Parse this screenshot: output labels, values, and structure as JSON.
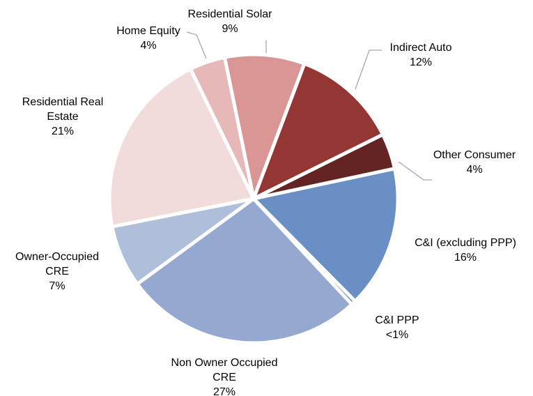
{
  "chart_data": {
    "type": "pie",
    "categories": [
      "Residential Solar",
      "Indirect Auto",
      "Other Consumer",
      "C&I (excluding PPP)",
      "C&I PPP",
      "Non Owner Occupied CRE",
      "Owner-Occupied CRE",
      "Residential Real Estate",
      "Home Equity"
    ],
    "values": [
      9,
      12,
      4,
      16,
      0.5,
      27,
      7,
      21,
      4
    ],
    "value_labels": [
      "9%",
      "12%",
      "4%",
      "16%",
      "<1%",
      "27%",
      "7%",
      "21%",
      "4%"
    ],
    "colors": [
      "#d99694",
      "#943634",
      "#632423",
      "#6a8fc4",
      "#5b80ba",
      "#95a9d0",
      "#afbfda",
      "#f2dcdb",
      "#e6b9b8"
    ]
  }
}
